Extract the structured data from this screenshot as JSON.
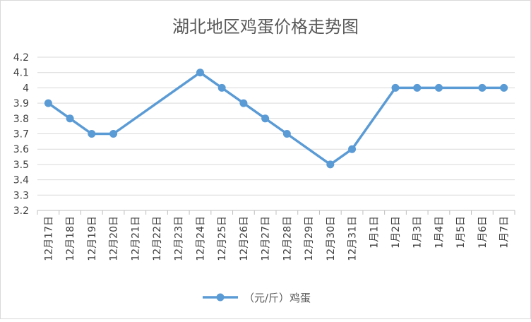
{
  "chart_data": {
    "type": "line",
    "title": "湖北地区鸡蛋价格走势图",
    "categories": [
      "12月17日",
      "12月18日",
      "12月19日",
      "12月20日",
      "12月21日",
      "12月22日",
      "12月23日",
      "12月24日",
      "12月25日",
      "12月26日",
      "12月27日",
      "12月28日",
      "12月29日",
      "12月30日",
      "12月31日",
      "1月1日",
      "1月2日",
      "1月3日",
      "1月4日",
      "1月5日",
      "1月6日",
      "1月7日"
    ],
    "series": [
      {
        "name": "（元/斤）鸡蛋",
        "values": [
          3.9,
          3.8,
          3.7,
          3.7,
          null,
          null,
          null,
          4.1,
          4.0,
          3.9,
          3.8,
          3.7,
          null,
          3.5,
          3.6,
          null,
          4.0,
          4.0,
          4.0,
          null,
          4.0,
          4.0
        ]
      }
    ],
    "ylim": [
      3.2,
      4.2
    ],
    "yticks": [
      "3.2",
      "3.3",
      "3.4",
      "3.5",
      "3.6",
      "3.7",
      "3.8",
      "3.9",
      "4",
      "4.1",
      "4.2"
    ],
    "grid": true,
    "legend": "bottom",
    "line_color": "#5b9bd5",
    "missing_values": "connect"
  }
}
